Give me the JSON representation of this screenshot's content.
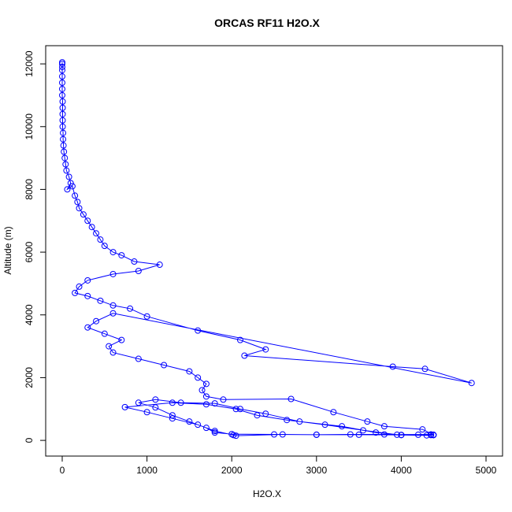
{
  "chart_data": {
    "type": "line",
    "title": "ORCAS RF11 H2O.X",
    "x_label": "H2O.X",
    "y_label": "Altitude (m)",
    "color": "#0000ff",
    "xlim": [
      -195,
      5195
    ],
    "ylim": [
      -500,
      12580
    ],
    "xticks": [
      0,
      1000,
      2000,
      3000,
      4000,
      5000
    ],
    "yticks": [
      0,
      2000,
      4000,
      6000,
      8000,
      10000,
      12000
    ],
    "x": [
      0,
      0,
      0,
      0,
      0,
      0,
      0,
      0,
      5,
      5,
      5,
      5,
      5,
      10,
      10,
      15,
      20,
      30,
      40,
      50,
      80,
      100,
      60,
      120,
      150,
      180,
      200,
      250,
      300,
      350,
      400,
      450,
      500,
      600,
      700,
      850,
      1150,
      900,
      600,
      300,
      200,
      150,
      300,
      450,
      600,
      800,
      1000,
      1600,
      2100,
      2400,
      2150,
      3900,
      4280,
      4830,
      600,
      400,
      300,
      500,
      700,
      550,
      600,
      900,
      1200,
      1500,
      1600,
      1700,
      1650,
      1700,
      1900,
      2700,
      3200,
      3600,
      3800,
      4250,
      4380,
      4350,
      4000,
      3500,
      3000,
      2500,
      2000,
      1800,
      1700,
      1500,
      1300,
      1100,
      900,
      1100,
      1400,
      1800,
      2100,
      2400,
      2800,
      3300,
      3700,
      4000,
      4300,
      4380,
      4200,
      3800,
      3400,
      3000,
      2600,
      2050,
      2020,
      1800,
      1600,
      1300,
      1000,
      740,
      1300,
      1700,
      2050,
      2300,
      2650,
      3100,
      3550,
      3950,
      4350,
      4380
    ],
    "values": [
      12050,
      12000,
      11900,
      11800,
      11600,
      11400,
      11200,
      11000,
      10800,
      10600,
      10400,
      10200,
      10000,
      9800,
      9600,
      9400,
      9200,
      9000,
      8800,
      8600,
      8400,
      8200,
      8000,
      8100,
      7800,
      7600,
      7400,
      7200,
      7000,
      6800,
      6600,
      6400,
      6200,
      6000,
      5900,
      5700,
      5600,
      5400,
      5300,
      5100,
      4900,
      4700,
      4600,
      4450,
      4300,
      4200,
      3950,
      3500,
      3200,
      2900,
      2700,
      2350,
      2280,
      1830,
      4050,
      3800,
      3600,
      3400,
      3200,
      3000,
      2800,
      2600,
      2400,
      2200,
      2000,
      1800,
      1600,
      1400,
      1300,
      1320,
      900,
      600,
      450,
      350,
      180,
      170,
      175,
      180,
      180,
      190,
      200,
      250,
      400,
      600,
      800,
      1050,
      1200,
      1300,
      1200,
      1180,
      1000,
      850,
      600,
      450,
      250,
      170,
      160,
      170,
      180,
      190,
      190,
      180,
      190,
      150,
      170,
      300,
      500,
      700,
      900,
      1060,
      1200,
      1150,
      1000,
      800,
      650,
      500,
      320,
      180,
      190,
      170
    ]
  }
}
